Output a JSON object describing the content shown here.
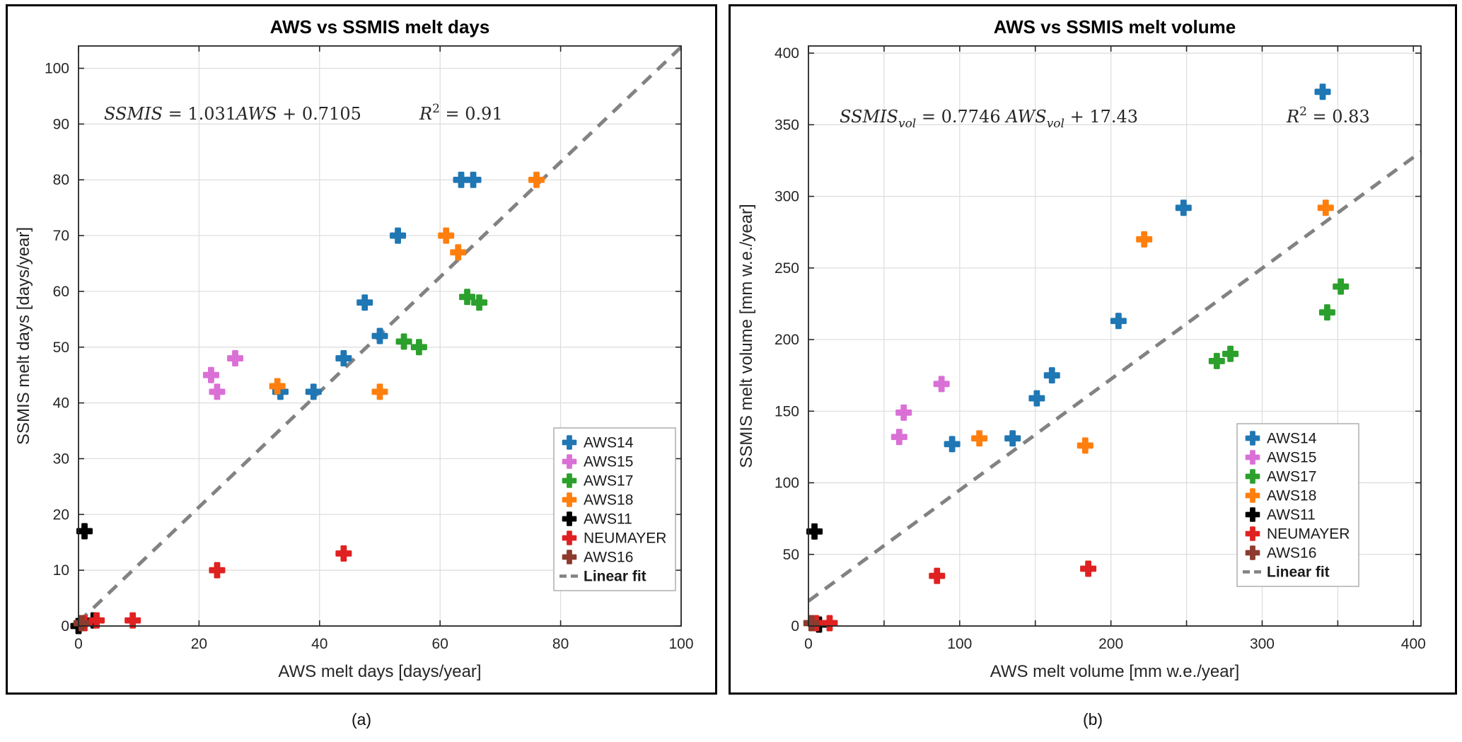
{
  "figure": {
    "caption_a": "(a)",
    "caption_b": "(b)"
  },
  "colors": {
    "background": "#ffffff",
    "panel_border": "#000000",
    "axis": "#262626",
    "grid": "#dcdcdc",
    "text": "#262626",
    "title": "#000000",
    "fit_line": "#828282",
    "legend_border": "#a8a8a8",
    "legend_text": "#1a1a1a"
  },
  "chart_data": [
    {
      "id": "chart-a",
      "type": "scatter",
      "title": "AWS vs SSMIS melt days",
      "xlabel": "AWS melt days [days/year]",
      "ylabel": "SSMIS melt days [days/year]",
      "xlim": [
        0,
        100
      ],
      "ylim": [
        0,
        104
      ],
      "xticks": [
        0,
        20,
        40,
        60,
        80,
        100
      ],
      "xtick_labels": [
        "0",
        "20",
        "40",
        "60",
        "80",
        "100"
      ],
      "yticks": [
        0,
        10,
        20,
        30,
        40,
        50,
        60,
        70,
        80,
        90,
        100
      ],
      "ytick_labels": [
        "0",
        "10",
        "20",
        "30",
        "40",
        "50",
        "60",
        "70",
        "80",
        "90",
        "100"
      ],
      "grid": true,
      "equation_text": "SSMIS = 1.031AWS + 0.7105",
      "r2_text": "R^2 = 0.91",
      "equation_parts": [
        {
          "t": "SSMIS",
          "i": true
        },
        {
          "t": " = 1.031"
        },
        {
          "t": "AWS",
          "i": true
        },
        {
          "t": " + 0.7105"
        }
      ],
      "r2_parts": [
        {
          "t": "R",
          "i": true
        },
        {
          "t": "2",
          "sup": true
        },
        {
          "t": " = 0.91"
        }
      ],
      "fit": {
        "slope": 1.031,
        "intercept": 0.7105,
        "label": "Linear fit"
      },
      "series": [
        {
          "name": "AWS14",
          "color": "#1f77b4",
          "points": [
            [
              33.5,
              42
            ],
            [
              39,
              42
            ],
            [
              44,
              48
            ],
            [
              47.5,
              58
            ],
            [
              50,
              52
            ],
            [
              53,
              70
            ],
            [
              63.5,
              80
            ],
            [
              65.5,
              80
            ]
          ]
        },
        {
          "name": "AWS15",
          "color": "#da70d6",
          "points": [
            [
              22,
              45
            ],
            [
              23,
              42
            ],
            [
              26,
              48
            ]
          ]
        },
        {
          "name": "AWS17",
          "color": "#2ca02c",
          "points": [
            [
              54,
              51
            ],
            [
              56.5,
              50
            ],
            [
              64.5,
              59
            ],
            [
              66.5,
              58
            ]
          ]
        },
        {
          "name": "AWS18",
          "color": "#ff7f0e",
          "points": [
            [
              33,
              43
            ],
            [
              50,
              42
            ],
            [
              61,
              70
            ],
            [
              63,
              67
            ],
            [
              76,
              80
            ]
          ]
        },
        {
          "name": "AWS11",
          "color": "#000000",
          "points": [
            [
              1,
              17
            ],
            [
              0,
              0
            ],
            [
              2.5,
              1
            ]
          ]
        },
        {
          "name": "NEUMAYER",
          "color": "#e02121",
          "points": [
            [
              1,
              0.5
            ],
            [
              3,
              1
            ],
            [
              9,
              1
            ],
            [
              23,
              10
            ],
            [
              44,
              13
            ]
          ]
        },
        {
          "name": "AWS16",
          "color": "#8e3b2f",
          "points": [
            [
              0.5,
              0.5
            ]
          ]
        }
      ]
    },
    {
      "id": "chart-b",
      "type": "scatter",
      "title": "AWS vs SSMIS melt volume",
      "xlabel": "AWS melt volume [mm w.e./year]",
      "ylabel": "SSMIS melt volume [mm w.e./year]",
      "xlim": [
        0,
        405
      ],
      "ylim": [
        0,
        405
      ],
      "xticks": [
        0,
        50,
        100,
        150,
        200,
        250,
        300,
        350,
        400
      ],
      "xtick_labels": [
        "0",
        "",
        "100",
        "",
        "200",
        "",
        "300",
        "",
        "400"
      ],
      "yticks": [
        0,
        50,
        100,
        150,
        200,
        250,
        300,
        350,
        400
      ],
      "ytick_labels": [
        "0",
        "50",
        "100",
        "150",
        "200",
        "250",
        "300",
        "350",
        "400"
      ],
      "grid": true,
      "equation_text": "SSMIS_vol = 0.7746 AWS_vol + 17.43",
      "r2_text": "R^2 = 0.83",
      "equation_parts": [
        {
          "t": "SSMIS",
          "i": true
        },
        {
          "t": "vol",
          "i": true,
          "sub": true
        },
        {
          "t": " = 0.7746 "
        },
        {
          "t": "AWS",
          "i": true
        },
        {
          "t": "vol",
          "i": true,
          "sub": true
        },
        {
          "t": " + 17.43"
        }
      ],
      "r2_parts": [
        {
          "t": "R",
          "i": true
        },
        {
          "t": "2",
          "sup": true
        },
        {
          "t": " = 0.83"
        }
      ],
      "fit": {
        "slope": 0.7746,
        "intercept": 17.43,
        "label": "Linear fit"
      },
      "series": [
        {
          "name": "AWS14",
          "color": "#1f77b4",
          "points": [
            [
              95,
              127
            ],
            [
              135,
              131
            ],
            [
              151,
              159
            ],
            [
              161,
              175
            ],
            [
              205,
              213
            ],
            [
              248,
              292
            ],
            [
              340,
              373
            ]
          ]
        },
        {
          "name": "AWS15",
          "color": "#da70d6",
          "points": [
            [
              60,
              132
            ],
            [
              63,
              149
            ],
            [
              88,
              169
            ]
          ]
        },
        {
          "name": "AWS17",
          "color": "#2ca02c",
          "points": [
            [
              270,
              185
            ],
            [
              279,
              190
            ],
            [
              343,
              219
            ],
            [
              352,
              237
            ]
          ]
        },
        {
          "name": "AWS18",
          "color": "#ff7f0e",
          "points": [
            [
              113,
              131
            ],
            [
              183,
              126
            ],
            [
              222,
              270
            ],
            [
              342,
              292
            ]
          ]
        },
        {
          "name": "AWS11",
          "color": "#000000",
          "points": [
            [
              4,
              66
            ],
            [
              7,
              1
            ]
          ]
        },
        {
          "name": "NEUMAYER",
          "color": "#e02121",
          "points": [
            [
              5,
              2
            ],
            [
              14,
              2
            ],
            [
              85,
              35
            ],
            [
              185,
              40
            ]
          ]
        },
        {
          "name": "AWS16",
          "color": "#8e3b2f",
          "points": [
            [
              2,
              2
            ]
          ]
        }
      ]
    }
  ]
}
